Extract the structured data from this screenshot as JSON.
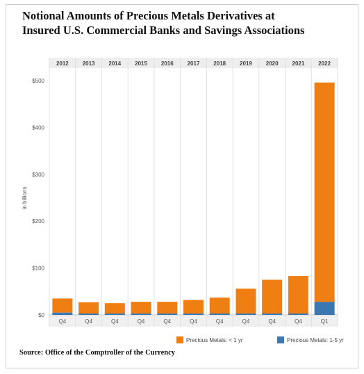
{
  "title": "Notional Amounts of Precious Metals Derivatives at\nInsured U.S. Commercial Banks and Savings Associations",
  "source": "Source: Office of the Comptroller of the Currency",
  "colors": {
    "lt1yr": "#f07f13",
    "one_to_5yr": "#3b78b2",
    "grid": "#e0e0e0"
  },
  "chart_data": {
    "type": "bar",
    "stacked": true,
    "categories": [
      "2012",
      "2013",
      "2014",
      "2015",
      "2016",
      "2017",
      "2018",
      "2019",
      "2020",
      "2021",
      "2022"
    ],
    "quarters": [
      "Q4",
      "Q4",
      "Q4",
      "Q4",
      "Q4",
      "Q4",
      "Q4",
      "Q4",
      "Q4",
      "Q4",
      "Q1"
    ],
    "series": [
      {
        "name": "Precious Metals: 1-5 yr",
        "values": [
          5,
          3,
          3,
          3,
          3,
          3,
          3,
          3,
          3,
          3,
          28
        ]
      },
      {
        "name": "Precious Metals: < 1 yr",
        "values": [
          30,
          24,
          22,
          25,
          25,
          29,
          34,
          53,
          72,
          80,
          468
        ]
      }
    ],
    "ylabel": "in billions",
    "ylim": [
      0,
      520
    ],
    "yticks": [
      {
        "value": 0,
        "label": "$0"
      },
      {
        "value": 100,
        "label": "$100"
      },
      {
        "value": 200,
        "label": "$200"
      },
      {
        "value": 300,
        "label": "$300"
      },
      {
        "value": 400,
        "label": "$400"
      },
      {
        "value": 500,
        "label": "$500"
      }
    ],
    "grid": true,
    "legend_position": "bottom-right",
    "legend": [
      "Precious Metals: < 1 yr",
      "Precious Metals: 1-5 yr"
    ]
  }
}
